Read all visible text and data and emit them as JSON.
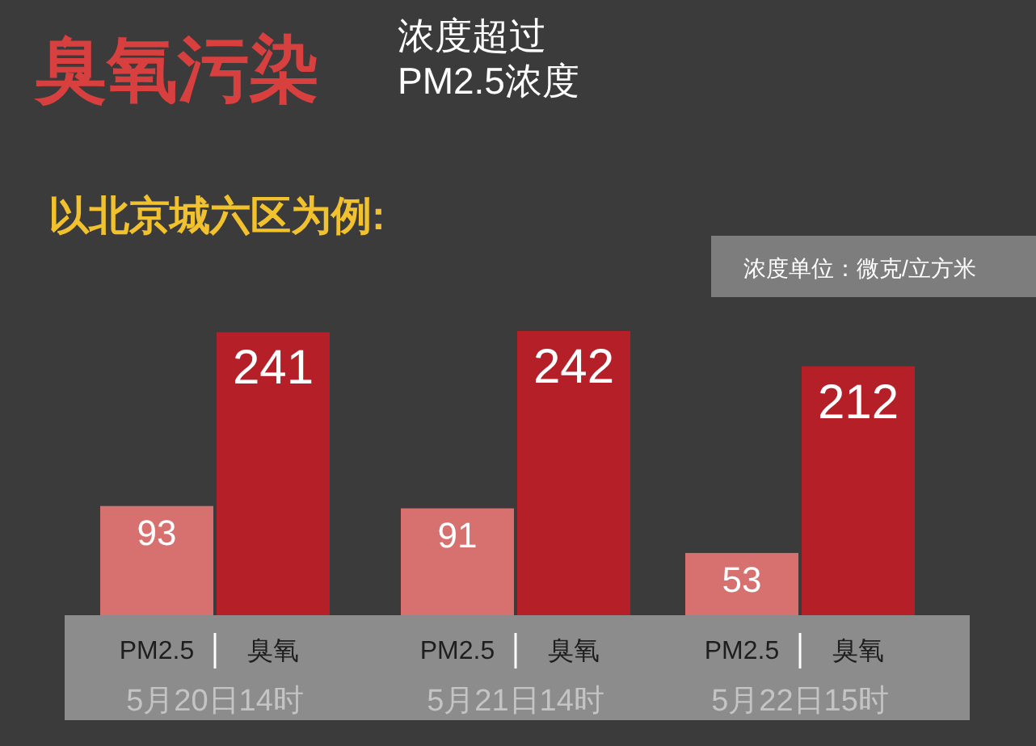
{
  "chart_data": {
    "type": "bar",
    "title": "臭氧污染",
    "subtitle": "浓度超过\nPM2.5浓度",
    "annotations": [
      "以北京城六区为例:",
      "浓度单位：微克/立方米"
    ],
    "categories": [
      "5月20日14时",
      "5月21日14时",
      "5月22日15时"
    ],
    "series": [
      {
        "name": "PM2.5",
        "color": "#d7716f",
        "values": [
          93,
          91,
          53
        ]
      },
      {
        "name": "臭氧",
        "color": "#b41f28",
        "values": [
          241,
          242,
          212
        ]
      }
    ],
    "data_labels": true
  }
}
